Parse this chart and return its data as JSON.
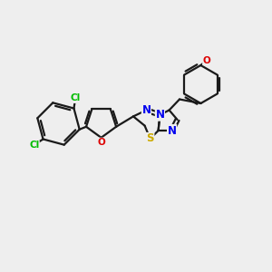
{
  "background_color": "#eeeeee",
  "bond_color": "#1a1a1a",
  "bond_width": 1.6,
  "atom_colors": {
    "N": "#0000ee",
    "O": "#dd0000",
    "S": "#ccaa00",
    "Cl": "#00bb00",
    "C": "#1a1a1a"
  },
  "font_size_atoms": 8.5,
  "font_size_cl": 7.5,
  "font_size_o": 7.5
}
